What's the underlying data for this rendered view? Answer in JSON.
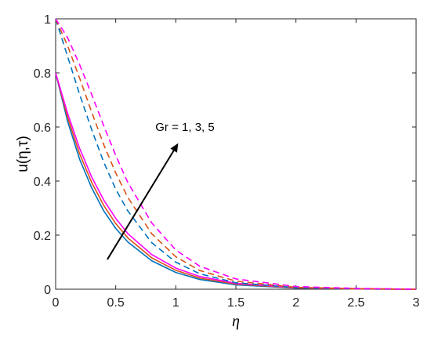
{
  "chart_data": {
    "type": "line",
    "xlabel": "η",
    "ylabel": "u(η,τ)",
    "xlim": [
      0,
      3
    ],
    "ylim": [
      0,
      1
    ],
    "xticks": [
      "0",
      "0.5",
      "1",
      "1.5",
      "2",
      "2.5",
      "3"
    ],
    "yticks": [
      "0",
      "0.2",
      "0.4",
      "0.6",
      "0.8",
      "1"
    ],
    "grid": false,
    "legend": "none",
    "annotation": {
      "text": "Gr = 1, 3, 5",
      "arrow_from": [
        0.43,
        0.11
      ],
      "arrow_to": [
        1.02,
        0.54
      ]
    },
    "series": [
      {
        "color": "#0072BD",
        "dash": "solid",
        "x": [
          0,
          0.1,
          0.2,
          0.3,
          0.4,
          0.5,
          0.6,
          0.8,
          1.0,
          1.2,
          1.5,
          2.0,
          2.5,
          3.0
        ],
        "y": [
          0.8,
          0.62,
          0.48,
          0.375,
          0.29,
          0.225,
          0.175,
          0.105,
          0.062,
          0.036,
          0.016,
          0.004,
          0.001,
          0
        ]
      },
      {
        "color": "#D95319",
        "dash": "solid",
        "x": [
          0,
          0.1,
          0.2,
          0.3,
          0.4,
          0.5,
          0.6,
          0.8,
          1.0,
          1.2,
          1.5,
          2.0,
          2.5,
          3.0
        ],
        "y": [
          0.8,
          0.635,
          0.5,
          0.395,
          0.31,
          0.243,
          0.19,
          0.116,
          0.07,
          0.041,
          0.019,
          0.005,
          0.001,
          0
        ]
      },
      {
        "color": "#FF00FF",
        "dash": "solid",
        "x": [
          0,
          0.1,
          0.2,
          0.3,
          0.4,
          0.5,
          0.6,
          0.8,
          1.0,
          1.2,
          1.5,
          2.0,
          2.5,
          3.0
        ],
        "y": [
          0.8,
          0.65,
          0.52,
          0.415,
          0.33,
          0.262,
          0.206,
          0.128,
          0.078,
          0.047,
          0.022,
          0.006,
          0.002,
          0
        ]
      },
      {
        "color": "#0072BD",
        "dash": "dashed",
        "x": [
          0,
          0.1,
          0.2,
          0.3,
          0.4,
          0.5,
          0.6,
          0.8,
          1.0,
          1.2,
          1.5,
          2.0,
          2.5,
          3.0
        ],
        "y": [
          1.0,
          0.86,
          0.72,
          0.59,
          0.47,
          0.37,
          0.29,
          0.172,
          0.1,
          0.057,
          0.024,
          0.006,
          0.002,
          0
        ]
      },
      {
        "color": "#D95319",
        "dash": "dashed",
        "x": [
          0,
          0.1,
          0.2,
          0.3,
          0.4,
          0.5,
          0.6,
          0.8,
          1.0,
          1.2,
          1.5,
          2.0,
          2.5,
          3.0
        ],
        "y": [
          1.0,
          0.9,
          0.78,
          0.655,
          0.535,
          0.43,
          0.34,
          0.205,
          0.12,
          0.069,
          0.03,
          0.007,
          0.002,
          0
        ]
      },
      {
        "color": "#FF00FF",
        "dash": "dashed",
        "x": [
          0,
          0.1,
          0.2,
          0.3,
          0.4,
          0.5,
          0.6,
          0.8,
          1.0,
          1.2,
          1.5,
          2.0,
          2.5,
          3.0
        ],
        "y": [
          1.0,
          0.93,
          0.83,
          0.72,
          0.605,
          0.495,
          0.395,
          0.245,
          0.145,
          0.085,
          0.038,
          0.01,
          0.003,
          0
        ]
      }
    ]
  }
}
